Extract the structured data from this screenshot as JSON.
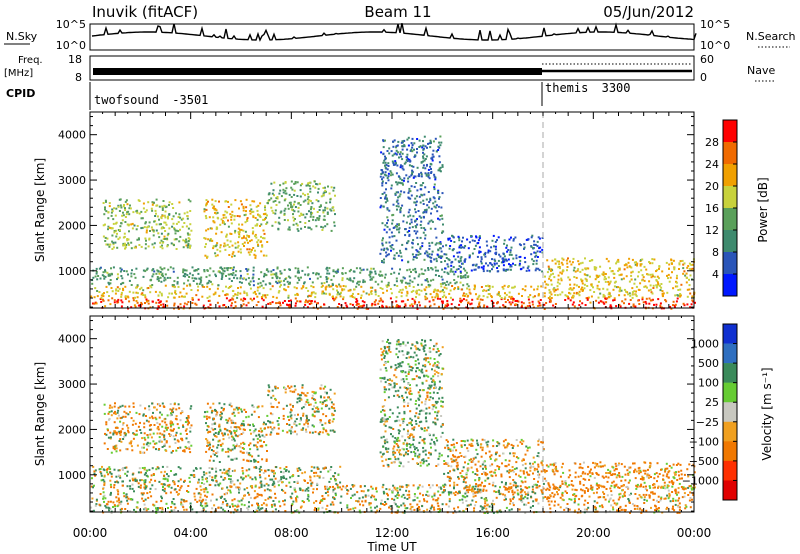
{
  "header": {
    "title": "Inuvik (fitACF)",
    "beam": "Beam 11",
    "date": "05/Jun/2012"
  },
  "sky_panel": {
    "left_label": "N.Sky",
    "left_ticks": [
      "10^5",
      "10^0"
    ],
    "right_label": "N.Search",
    "right_ticks": [
      "10^5",
      "10^0"
    ]
  },
  "freq_panel": {
    "left_label_line1": "Freq.",
    "left_label_line2": "[MHz]",
    "left_ticks": [
      "18",
      "8"
    ],
    "right_label": "Nave",
    "right_ticks": [
      "60",
      "0"
    ]
  },
  "cpid_panel": {
    "label": "CPID",
    "modes": [
      {
        "name": "twofsound",
        "id": "-3501",
        "start_hour": 0,
        "end_hour": 18
      },
      {
        "name": "themis",
        "id": "3300",
        "start_hour": 18,
        "end_hour": 24
      }
    ]
  },
  "x_axis": {
    "label": "Time UT",
    "ticks": [
      "00:00",
      "04:00",
      "08:00",
      "12:00",
      "16:00",
      "20:00",
      "00:00"
    ],
    "range_hours": [
      0,
      24
    ]
  },
  "power_panel": {
    "ylabel": "Slant Range [km]",
    "yticks": [
      "1000",
      "2000",
      "3000",
      "4000"
    ],
    "colorbar_label": "Power [dB]",
    "colorbar_ticks": [
      "28",
      "24",
      "20",
      "16",
      "12",
      "8",
      "4"
    ]
  },
  "velocity_panel": {
    "ylabel": "Slant Range [km]",
    "yticks": [
      "1000",
      "2000",
      "3000",
      "4000"
    ],
    "colorbar_label": "Velocity [m s⁻¹]",
    "colorbar_ticks": [
      "1000",
      "500",
      "100",
      "25",
      "−25",
      "−100",
      "−500",
      "−1000"
    ]
  },
  "colors": {
    "power_scale": [
      "#0018ff",
      "#2a55b8",
      "#3e8a6e",
      "#5aa05a",
      "#c8d23c",
      "#f0a000",
      "#f06a00",
      "#ff0000"
    ],
    "velocity_scale": [
      "#1030d0",
      "#2f6fc0",
      "#3a8a5a",
      "#66cc33",
      "#c8c8c0",
      "#f0a020",
      "#f07800",
      "#ff3000",
      "#e00000"
    ]
  },
  "chart_data": {
    "type": "heatmap",
    "title": "Inuvik (fitACF) Beam 11 05/Jun/2012",
    "xlabel": "Time UT",
    "ylabel": "Slant Range [km]",
    "xlim": [
      0,
      24
    ],
    "ylim": [
      180,
      4500
    ],
    "panels": [
      {
        "name": "Power",
        "unit": "dB",
        "color_scale": [
          0,
          32
        ],
        "bands": [
          {
            "t_start": 0,
            "t_end": 24,
            "r_start": 180,
            "r_end": 420,
            "value": 28
          },
          {
            "t_start": 0,
            "t_end": 24,
            "r_start": 420,
            "r_end": 700,
            "value": 20
          },
          {
            "t_start": 0,
            "t_end": 15,
            "r_start": 700,
            "r_end": 1100,
            "value": 12
          },
          {
            "t_start": 0.5,
            "t_end": 4,
            "r_start": 1500,
            "r_end": 2600,
            "value": 16
          },
          {
            "t_start": 4.5,
            "t_end": 7,
            "r_start": 1300,
            "r_end": 2600,
            "value": 20
          },
          {
            "t_start": 7,
            "t_end": 9.7,
            "r_start": 1900,
            "r_end": 3000,
            "value": 14
          },
          {
            "t_start": 11.5,
            "t_end": 14,
            "r_start": 1200,
            "r_end": 4000,
            "value": 8
          },
          {
            "t_start": 14,
            "t_end": 18,
            "r_start": 1000,
            "r_end": 1800,
            "value": 6
          },
          {
            "t_start": 18,
            "t_end": 24,
            "r_start": 700,
            "r_end": 1300,
            "value": 20
          }
        ]
      },
      {
        "name": "Velocity",
        "unit": "m s-1",
        "color_scale": [
          -1000,
          1000
        ],
        "bands": [
          {
            "t_start": 0,
            "t_end": 18,
            "r_start": 180,
            "r_end": 800,
            "value": 0
          },
          {
            "t_start": 18,
            "t_end": 24,
            "r_start": 180,
            "r_end": 800,
            "value": -150
          },
          {
            "t_start": 0,
            "t_end": 10,
            "r_start": 800,
            "r_end": 1200,
            "value": 80
          },
          {
            "t_start": 0.5,
            "t_end": 4,
            "r_start": 1500,
            "r_end": 2600,
            "value": -60
          },
          {
            "t_start": 4.5,
            "t_end": 7,
            "r_start": 1300,
            "r_end": 2600,
            "value": 0
          },
          {
            "t_start": 7,
            "t_end": 9.7,
            "r_start": 1900,
            "r_end": 3000,
            "value": 0
          },
          {
            "t_start": 11.5,
            "t_end": 14,
            "r_start": 1200,
            "r_end": 4000,
            "value": 120
          },
          {
            "t_start": 14,
            "t_end": 18,
            "r_start": 600,
            "r_end": 1800,
            "value": -80
          },
          {
            "t_start": 18,
            "t_end": 24,
            "r_start": 700,
            "r_end": 1300,
            "value": -180
          }
        ]
      }
    ],
    "mode_change_hour": 18
  }
}
